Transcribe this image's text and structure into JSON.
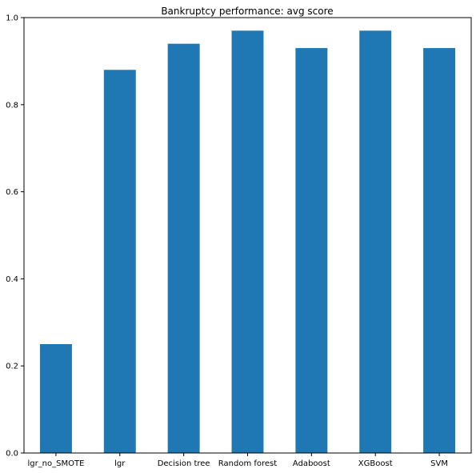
{
  "chart_data": {
    "type": "bar",
    "title": "Bankruptcy performance: avg score",
    "xlabel": "",
    "ylabel": "",
    "categories": [
      "lgr_no_SMOTE",
      "lgr",
      "Decision tree",
      "Random forest",
      "Adaboost",
      "XGBoost",
      "SVM"
    ],
    "values": [
      0.25,
      0.88,
      0.94,
      0.97,
      0.93,
      0.97,
      0.93
    ],
    "ylim": [
      0,
      1.0
    ],
    "yticks": [
      0.0,
      0.2,
      0.4,
      0.6,
      0.8,
      1.0
    ],
    "ytick_labels": [
      "0.0",
      "0.2",
      "0.4",
      "0.6",
      "0.8",
      "1.0"
    ],
    "grid": false,
    "legend": "none",
    "bar_color": "#1f77b4"
  }
}
